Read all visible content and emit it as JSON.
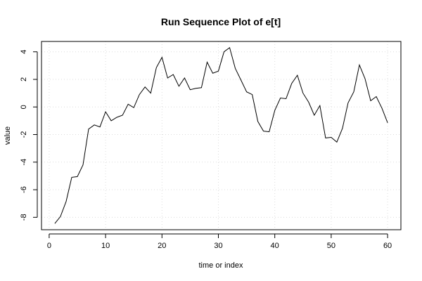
{
  "chart_data": {
    "type": "line",
    "title": "Run Sequence Plot of e[t]",
    "xlabel": "time or index",
    "ylabel": "value",
    "xlim": [
      -1.36,
      62.36
    ],
    "ylim": [
      -8.9,
      4.75
    ],
    "x_ticks": [
      0,
      10,
      20,
      30,
      40,
      50,
      60
    ],
    "y_ticks": [
      -8,
      -6,
      -4,
      -2,
      0,
      2,
      4
    ],
    "grid": true,
    "series": [
      {
        "color": "#000000",
        "x": [
          1,
          2,
          3,
          4,
          5,
          6,
          7,
          8,
          9,
          10,
          11,
          12,
          13,
          14,
          15,
          16,
          17,
          18,
          19,
          20,
          21,
          22,
          23,
          24,
          25,
          26,
          27,
          28,
          29,
          30,
          31,
          32,
          33,
          34,
          35,
          36,
          37,
          38,
          39,
          40,
          41,
          42,
          43,
          44,
          45,
          46,
          47,
          48,
          49,
          50,
          51,
          52,
          53,
          54,
          55,
          56,
          57,
          58,
          59,
          60
        ],
        "values": [
          -8.45,
          -7.95,
          -6.85,
          -5.1,
          -5.05,
          -4.2,
          -1.6,
          -1.3,
          -1.45,
          -0.35,
          -1.0,
          -0.75,
          -0.6,
          0.2,
          -0.05,
          0.9,
          1.45,
          1.0,
          2.85,
          3.6,
          2.1,
          2.35,
          1.5,
          2.1,
          1.25,
          1.35,
          1.4,
          3.25,
          2.45,
          2.6,
          4.0,
          4.3,
          2.8,
          1.95,
          1.1,
          0.9,
          -1.05,
          -1.75,
          -1.8,
          -0.25,
          0.65,
          0.6,
          1.7,
          2.3,
          1.0,
          0.35,
          -0.6,
          0.1,
          -2.25,
          -2.2,
          -2.55,
          -1.55,
          0.3,
          1.1,
          3.05,
          2.05,
          0.45,
          0.75,
          -0.1,
          -1.15
        ]
      }
    ]
  }
}
